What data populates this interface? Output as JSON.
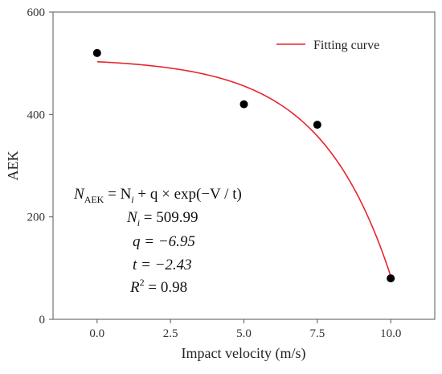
{
  "chart_data": {
    "type": "scatter",
    "xlabel": "Impact velocity (m/s)",
    "ylabel": "AEK",
    "xlim": [
      -1.5,
      11.5
    ],
    "ylim": [
      0,
      600
    ],
    "xticks": [
      0.0,
      2.5,
      5.0,
      7.5,
      10.0
    ],
    "xtick_labels": [
      "0.0",
      "2.5",
      "5.0",
      "7.5",
      "10.0"
    ],
    "yticks": [
      0,
      200,
      400,
      600
    ],
    "ytick_labels": [
      "0",
      "200",
      "400",
      "600"
    ],
    "grid": false,
    "legend_position": "top-right",
    "series": [
      {
        "kind": "scatter",
        "color": "#000000",
        "x": [
          0.0,
          5.0,
          7.5,
          10.0
        ],
        "y": [
          520,
          420,
          380,
          80
        ]
      },
      {
        "kind": "line",
        "name": "Fitting curve",
        "color": "#e8242c",
        "model": {
          "Ni": 509.99,
          "q": -6.95,
          "t": -2.43
        },
        "x_range": [
          0.0,
          10.0
        ]
      }
    ],
    "equation": {
      "line1_lhs": "N",
      "line1_lhs_sub": "AEK",
      "line1_rhs_a": " = N",
      "line1_rhs_a_sub": "i",
      "line1_rhs_b": " + q × exp(−V / t)",
      "ni_label": "N",
      "ni_sub": "i",
      "ni_value": " = 509.99",
      "q_text": "q = −6.95",
      "t_text": "t = −2.43",
      "r2_label": "R",
      "r2_sup": "2",
      "r2_value": " = 0.98"
    }
  }
}
